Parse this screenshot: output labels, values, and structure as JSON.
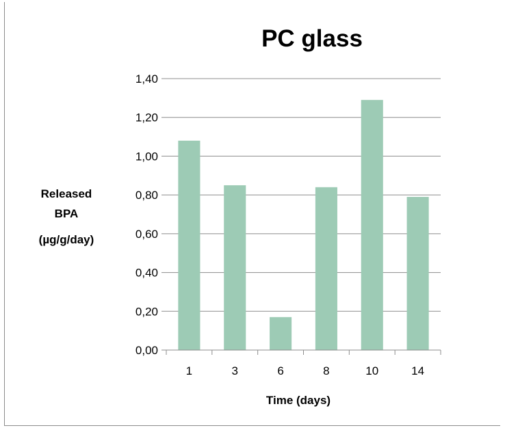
{
  "chart_data": {
    "type": "bar",
    "title": "PC glass",
    "xlabel": "Time (days)",
    "ylabel": [
      "Released",
      "BPA",
      "(µg/g/day)"
    ],
    "categories": [
      "1",
      "3",
      "6",
      "8",
      "10",
      "14"
    ],
    "values": [
      1.08,
      0.85,
      0.17,
      0.84,
      1.29,
      0.79
    ],
    "ylim": [
      0,
      1.4
    ],
    "yticks": [
      "0,00",
      "0,20",
      "0,40",
      "0,60",
      "0,80",
      "1,00",
      "1,20",
      "1,40"
    ],
    "grid": true,
    "bar_color": "#9dcbb5",
    "grid_color": "#8c8c8c"
  }
}
